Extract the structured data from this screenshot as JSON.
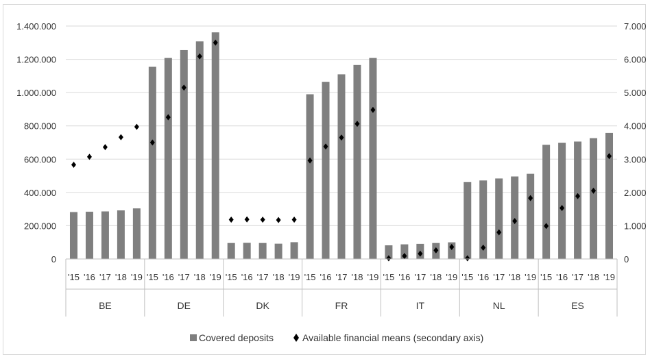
{
  "chart_data": {
    "type": "bar",
    "title": "",
    "groups": [
      "BE",
      "DE",
      "DK",
      "FR",
      "IT",
      "NL",
      "ES"
    ],
    "years": [
      "'15",
      "'16",
      "'17",
      "'18",
      "'19"
    ],
    "y_left": {
      "ylim": [
        0,
        1400000
      ],
      "ticks": [
        0,
        200000,
        400000,
        600000,
        800000,
        1000000,
        1200000,
        1400000
      ],
      "tick_labels": [
        "0",
        "200.000",
        "400.000",
        "600.000",
        "800.000",
        "1.000.000",
        "1.200.000",
        "1.400.000"
      ]
    },
    "y_right": {
      "ylim": [
        0,
        7000
      ],
      "ticks": [
        0,
        1000,
        2000,
        3000,
        4000,
        5000,
        6000,
        7000
      ],
      "tick_labels": [
        "0",
        "1.000",
        "2.000",
        "3.000",
        "4.000",
        "5.000",
        "6.000",
        "7.000"
      ]
    },
    "grid": true,
    "legend_position": "bottom",
    "series": [
      {
        "name": "Covered deposits",
        "type": "bar",
        "axis": "left",
        "color": "#7f7f7f",
        "values": [
          [
            282000,
            284000,
            286000,
            292000,
            304000
          ],
          [
            1155000,
            1208000,
            1256000,
            1308000,
            1362000
          ],
          [
            96000,
            97000,
            96000,
            92000,
            101000
          ],
          [
            990000,
            1064000,
            1110000,
            1166000,
            1208000
          ],
          [
            82000,
            88000,
            91000,
            96000,
            100000
          ],
          [
            462000,
            472000,
            484000,
            496000,
            512000
          ],
          [
            686000,
            698000,
            706000,
            726000,
            758000
          ]
        ]
      },
      {
        "name": "Available financial means (secondary axis)",
        "type": "scatter",
        "axis": "right",
        "color": "#000000",
        "values": [
          [
            2830,
            3070,
            3360,
            3660,
            3970
          ],
          [
            3500,
            4260,
            5150,
            6090,
            6500
          ],
          [
            1180,
            1190,
            1180,
            1170,
            1180
          ],
          [
            2960,
            3380,
            3650,
            4060,
            4480
          ],
          [
            20,
            90,
            160,
            260,
            360
          ],
          [
            20,
            340,
            800,
            1140,
            1830
          ],
          [
            990,
            1530,
            1890,
            2050,
            3090
          ]
        ]
      }
    ]
  }
}
